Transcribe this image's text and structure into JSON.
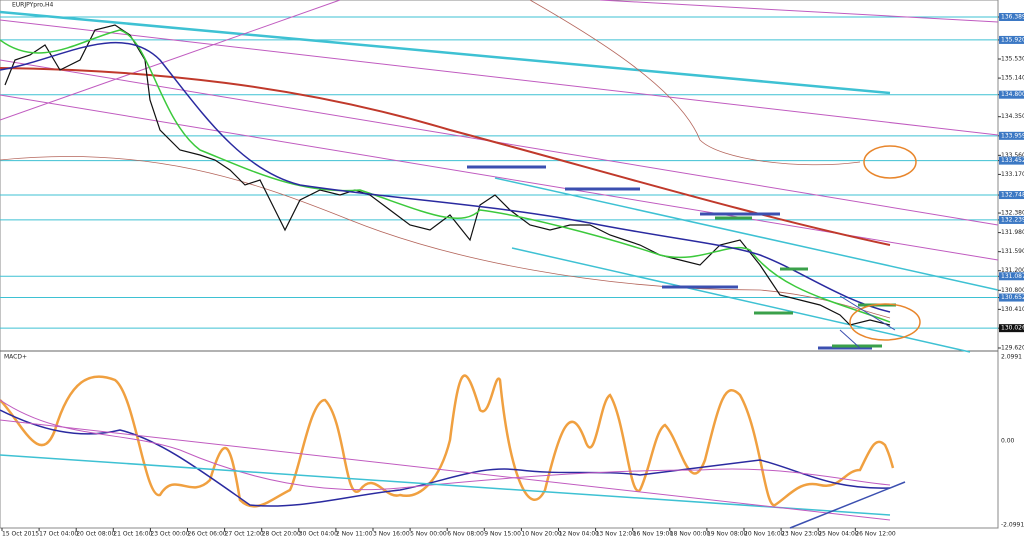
{
  "header": {
    "symbol": "EURJPYpro,H4",
    "indicator": "MACD+"
  },
  "price_axis": {
    "labels": [
      "136.389",
      "135.920",
      "135.530",
      "135.140",
      "134.800",
      "134.350",
      "133.959",
      "133.560",
      "133.452",
      "133.170",
      "132.748",
      "132.380",
      "132.239",
      "131.980",
      "131.590",
      "131.200",
      "131.087",
      "130.800",
      "130.652",
      "130.410",
      "130.026",
      "129.620"
    ],
    "levels": [
      "136.389",
      "135.920",
      "134.800",
      "133.959",
      "133.452",
      "132.748",
      "132.239",
      "131.087",
      "130.652",
      "130.026"
    ]
  },
  "macd_axis": {
    "labels": [
      "2.0991",
      "0.00",
      "-2.0991"
    ]
  },
  "time_axis": {
    "labels": [
      "15 Oct 2015",
      "17 Oct 04:00",
      "20 Oct 08:00",
      "21 Oct 16:00",
      "23 Oct 00:00",
      "26 Oct 06:00",
      "27 Oct 12:00",
      "28 Oct 20:00",
      "30 Oct 04:00",
      "2 Nov 11:00",
      "3 Nov 16:00",
      "5 Nov 00:00",
      "6 Nov 08:00",
      "9 Nov 15:00",
      "10 Nov 20:00",
      "12 Nov 04:00",
      "13 Nov 12:00",
      "16 Nov 19:00",
      "18 Nov 00:00",
      "19 Nov 08:00",
      "20 Nov 16:00",
      "23 Nov 23:00",
      "25 Nov 04:00",
      "26 Nov 12:00"
    ]
  }
}
